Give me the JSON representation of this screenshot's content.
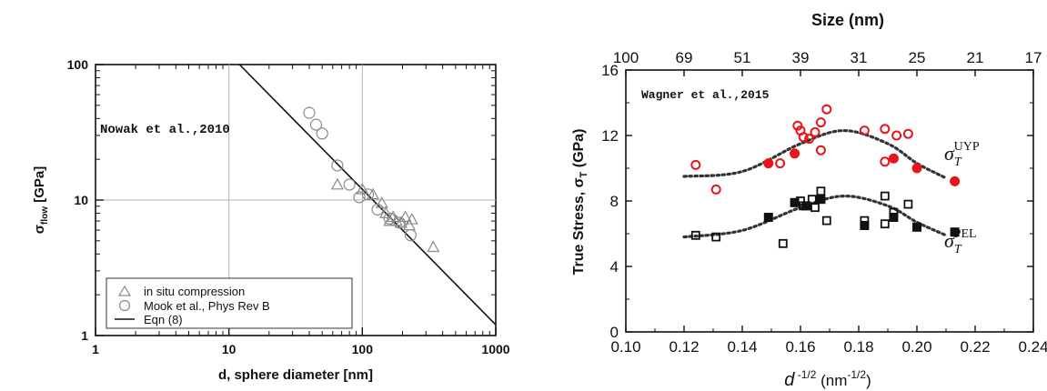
{
  "chart_data": [
    {
      "type": "scatter",
      "scale": "log-log",
      "xlabel": "d, sphere diameter [nm]",
      "ylabel_main": "σ",
      "ylabel_sub": "flow",
      "ylabel_unit": " [GPa]",
      "xlim": [
        1,
        1000
      ],
      "ylim": [
        1,
        100
      ],
      "xticks": [
        "1",
        "10",
        "100",
        "1000"
      ],
      "yticks": [
        "1",
        "10",
        "100"
      ],
      "grid": "major lines at x=10, x=100, y=10",
      "annotation": "Nowak et al.,2010",
      "legend_position": "bottom-left",
      "legend": [
        {
          "label": "in situ compression",
          "marker": "triangle"
        },
        {
          "label": "Mook et al., Phys Rev B",
          "marker": "circle"
        },
        {
          "label": "Eqn (8)",
          "marker": "line"
        }
      ],
      "series": [
        {
          "name": "in situ compression",
          "marker": "triangle",
          "x": [
            65,
            100,
            120,
            140,
            150,
            160,
            170,
            180,
            195,
            210,
            225,
            235,
            340
          ],
          "y": [
            13,
            12,
            11,
            9.5,
            8,
            7,
            7.5,
            7,
            6.8,
            7.5,
            6.5,
            7.2,
            4.5
          ]
        },
        {
          "name": "Mook et al., Phys Rev B",
          "marker": "circle",
          "x": [
            40,
            45,
            50,
            65,
            80,
            95,
            110,
            130,
            160,
            190,
            230
          ],
          "y": [
            44,
            36,
            31,
            18,
            13,
            10.5,
            11,
            8.5,
            7.3,
            6.8,
            5.5
          ]
        },
        {
          "name": "Eqn (8)",
          "marker": "line",
          "x": [
            12,
            1000
          ],
          "y": [
            100,
            1.2
          ]
        }
      ]
    },
    {
      "type": "scatter",
      "xlabel_main": "d",
      "xlabel_sup": " -1/2",
      "xlabel_unit": " (nm",
      "xlabel_unit_sup": "-1/2",
      "xlabel_close": ")",
      "ylabel_main": "True Stress, σ",
      "ylabel_sub": "T",
      "ylabel_unit": " (GPa)",
      "top_xlabel": "Size (nm)",
      "top_ticks": [
        "100",
        "69",
        "51",
        "39",
        "31",
        "25",
        "21",
        "17"
      ],
      "top_tick_values": [
        0.1,
        0.12,
        0.14,
        0.16,
        0.18,
        0.2,
        0.22,
        0.24
      ],
      "xlim": [
        0.1,
        0.24
      ],
      "ylim": [
        0,
        16
      ],
      "xticks": [
        "0.10",
        "0.12",
        "0.14",
        "0.16",
        "0.18",
        "0.20",
        "0.22",
        "0.24"
      ],
      "yticks": [
        "0",
        "4",
        "8",
        "12",
        "16"
      ],
      "grid": false,
      "annotation": "Wagner et al.,2015",
      "curve_labels": [
        {
          "main": "σ",
          "sub": "T",
          "sup": "UYP"
        },
        {
          "main": "σ",
          "sub": "T",
          "sup": "PEL"
        }
      ],
      "colors": {
        "uyp": "#e8141c",
        "pel": "#111111"
      },
      "series": [
        {
          "name": "UYP open",
          "marker": "open-circle",
          "color": "#e8141c",
          "x": [
            0.124,
            0.131,
            0.153,
            0.159,
            0.16,
            0.161,
            0.163,
            0.165,
            0.167,
            0.167,
            0.169,
            0.182,
            0.189,
            0.189,
            0.193,
            0.197
          ],
          "y": [
            10.2,
            8.7,
            10.3,
            12.6,
            12.3,
            11.9,
            11.8,
            12.2,
            12.8,
            11.1,
            13.6,
            12.3,
            12.4,
            10.4,
            12,
            12.1
          ]
        },
        {
          "name": "UYP filled",
          "marker": "filled-circle",
          "color": "#e8141c",
          "x": [
            0.149,
            0.158,
            0.192,
            0.2,
            0.213
          ],
          "y": [
            10.3,
            10.9,
            10.6,
            10,
            9.2
          ]
        },
        {
          "name": "PEL open",
          "marker": "open-square",
          "color": "#111111",
          "x": [
            0.124,
            0.131,
            0.154,
            0.16,
            0.161,
            0.164,
            0.165,
            0.167,
            0.169,
            0.182,
            0.189,
            0.189,
            0.192,
            0.197
          ],
          "y": [
            5.9,
            5.8,
            5.4,
            8,
            7.7,
            8.1,
            7.6,
            8.6,
            6.8,
            6.8,
            8.3,
            6.6,
            7.3,
            7.8
          ]
        },
        {
          "name": "PEL filled",
          "marker": "filled-square",
          "color": "#111111",
          "x": [
            0.149,
            0.158,
            0.162,
            0.167,
            0.182,
            0.192,
            0.2,
            0.213
          ],
          "y": [
            7,
            7.9,
            7.7,
            8.1,
            6.5,
            7,
            6.4,
            6.1
          ]
        },
        {
          "name": "UYP fit",
          "marker": "dotted-line",
          "x": [
            0.12,
            0.14,
            0.16,
            0.175,
            0.19,
            0.2,
            0.21
          ],
          "y": [
            9.5,
            9.8,
            11.5,
            12.3,
            11.5,
            10.3,
            9.4
          ]
        },
        {
          "name": "PEL fit",
          "marker": "dotted-line",
          "x": [
            0.12,
            0.14,
            0.16,
            0.175,
            0.19,
            0.2,
            0.21
          ],
          "y": [
            5.8,
            6.2,
            7.6,
            8.3,
            7.7,
            6.7,
            5.9
          ]
        }
      ]
    }
  ]
}
